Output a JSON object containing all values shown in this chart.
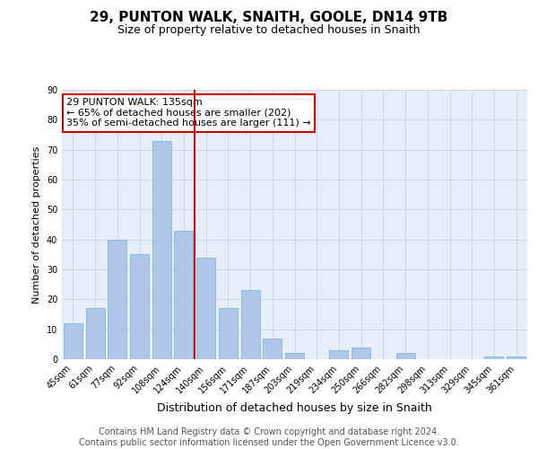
{
  "title1": "29, PUNTON WALK, SNAITH, GOOLE, DN14 9TB",
  "title2": "Size of property relative to detached houses in Snaith",
  "xlabel": "Distribution of detached houses by size in Snaith",
  "ylabel": "Number of detached properties",
  "categories": [
    "45sqm",
    "61sqm",
    "77sqm",
    "92sqm",
    "108sqm",
    "124sqm",
    "140sqm",
    "156sqm",
    "171sqm",
    "187sqm",
    "203sqm",
    "219sqm",
    "234sqm",
    "250sqm",
    "266sqm",
    "282sqm",
    "298sqm",
    "313sqm",
    "329sqm",
    "345sqm",
    "361sqm"
  ],
  "values": [
    12,
    17,
    40,
    35,
    73,
    43,
    34,
    17,
    23,
    7,
    2,
    0,
    3,
    4,
    0,
    2,
    0,
    0,
    0,
    1,
    1
  ],
  "bar_color": "#aec6e8",
  "bar_edge_color": "#7aadd4",
  "vline_x_index": 5.5,
  "vline_color": "#cc0000",
  "annotation_text": "29 PUNTON WALK: 135sqm\n← 65% of detached houses are smaller (202)\n35% of semi-detached houses are larger (111) →",
  "annotation_box_color": "#ffffff",
  "annotation_box_edge_color": "#cc0000",
  "ylim": [
    0,
    90
  ],
  "yticks": [
    0,
    10,
    20,
    30,
    40,
    50,
    60,
    70,
    80,
    90
  ],
  "grid_color": "#d0d8e8",
  "background_color": "#e8eef8",
  "footer_text": "Contains HM Land Registry data © Crown copyright and database right 2024.\nContains public sector information licensed under the Open Government Licence v3.0.",
  "title1_fontsize": 11,
  "title2_fontsize": 9,
  "xlabel_fontsize": 9,
  "ylabel_fontsize": 8,
  "tick_fontsize": 7,
  "footer_fontsize": 7,
  "annot_fontsize": 8
}
